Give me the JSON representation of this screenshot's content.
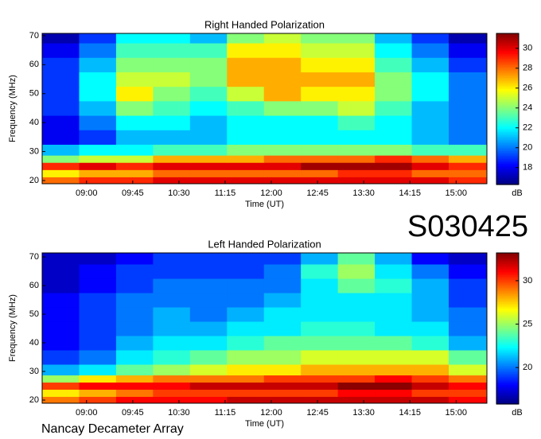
{
  "chart_data": [
    {
      "type": "heatmap",
      "title": "Right Handed Polarization",
      "x_label": "Time (UT)",
      "y_label": "Frequency (MHz)",
      "colorbar_label": "dB",
      "colormap": "jet",
      "x": [
        8.58,
        9.18,
        9.78,
        10.38,
        10.98,
        11.58,
        12.18,
        12.78,
        13.38,
        13.98,
        14.58,
        15.18
      ],
      "y": [
        20,
        22.5,
        25,
        27.5,
        30,
        35,
        40,
        45,
        50,
        55,
        60,
        65,
        70
      ],
      "values": [
        [
          28,
          29,
          29,
          30,
          30,
          30,
          30,
          30,
          30,
          30,
          30,
          29
        ],
        [
          26,
          27,
          27,
          28,
          28,
          28,
          28,
          28,
          29,
          29,
          28,
          28
        ],
        [
          29,
          30,
          29,
          30,
          30,
          30,
          30,
          31,
          31,
          31,
          30,
          29
        ],
        [
          24,
          25,
          25,
          27,
          27,
          27,
          28,
          28,
          28,
          29,
          28,
          27
        ],
        [
          21,
          22,
          22,
          23,
          23,
          24,
          24,
          24,
          24,
          24,
          23,
          23
        ],
        [
          18,
          19,
          21,
          21,
          21,
          22,
          22,
          22,
          22,
          22,
          21,
          20
        ],
        [
          18,
          20,
          22,
          22,
          21,
          22,
          22,
          22,
          23,
          22,
          21,
          20
        ],
        [
          19,
          21,
          24,
          23,
          22,
          23,
          24,
          24,
          25,
          23,
          21,
          20
        ],
        [
          19,
          22,
          26,
          24,
          23,
          25,
          27,
          26,
          26,
          24,
          22,
          20
        ],
        [
          19,
          22,
          25,
          25,
          24,
          27,
          27,
          27,
          27,
          24,
          22,
          20
        ],
        [
          19,
          21,
          24,
          24,
          24,
          27,
          27,
          26,
          26,
          23,
          21,
          19
        ],
        [
          18,
          20,
          23,
          23,
          23,
          26,
          26,
          25,
          25,
          22,
          20,
          18
        ],
        [
          17,
          19,
          22,
          22,
          21,
          24,
          25,
          24,
          24,
          21,
          19,
          17
        ]
      ],
      "xlim": [
        8.28,
        15.5
      ],
      "xticks": [
        {
          "value": 9,
          "label": "09:00"
        },
        {
          "value": 9.75,
          "label": "09:45"
        },
        {
          "value": 10.5,
          "label": "10:30"
        },
        {
          "value": 11.25,
          "label": "11:15"
        },
        {
          "value": 12,
          "label": "12:00"
        },
        {
          "value": 12.75,
          "label": "12:45"
        },
        {
          "value": 13.5,
          "label": "13:30"
        },
        {
          "value": 14.25,
          "label": "14:15"
        },
        {
          "value": 15,
          "label": "15:00"
        }
      ],
      "ylim": [
        18.9,
        70.8
      ],
      "yticks": [
        20,
        30,
        40,
        50,
        60,
        70
      ],
      "clim": [
        16.3,
        31.5
      ],
      "cticks": [
        18,
        20,
        22,
        24,
        26,
        28,
        30
      ]
    },
    {
      "type": "heatmap",
      "title": "Left Handed Polarization",
      "x_label": "Time (UT)",
      "y_label": "Frequency (MHz)",
      "colorbar_label": "dB",
      "colormap": "jet",
      "x": [
        8.58,
        9.18,
        9.78,
        10.38,
        10.98,
        11.58,
        12.18,
        12.78,
        13.38,
        13.98,
        14.58,
        15.18
      ],
      "y": [
        20,
        22.5,
        25,
        27.5,
        30,
        35,
        40,
        45,
        50,
        55,
        60,
        65,
        70
      ],
      "values": [
        [
          29,
          30,
          31,
          31,
          31,
          32,
          32,
          32,
          32,
          32,
          32,
          31
        ],
        [
          27,
          28,
          29,
          30,
          30,
          30,
          30,
          30,
          31,
          31,
          30,
          30
        ],
        [
          30,
          31,
          31,
          31,
          32,
          32,
          32,
          32,
          33,
          33,
          32,
          31
        ],
        [
          25,
          27,
          28,
          29,
          29,
          29,
          30,
          30,
          30,
          31,
          30,
          29
        ],
        [
          21,
          22,
          24,
          25,
          26,
          27,
          27,
          28,
          28,
          28,
          28,
          26
        ],
        [
          19,
          20,
          22,
          23,
          24,
          25,
          25,
          26,
          26,
          26,
          26,
          24
        ],
        [
          18,
          19,
          21,
          22,
          22,
          23,
          24,
          24,
          24,
          24,
          23,
          21
        ],
        [
          18,
          19,
          20,
          21,
          21,
          22,
          22,
          23,
          23,
          22,
          22,
          20
        ],
        [
          18,
          19,
          20,
          21,
          20,
          21,
          22,
          22,
          22,
          22,
          21,
          20
        ],
        [
          18,
          19,
          20,
          20,
          20,
          20,
          21,
          22,
          22,
          22,
          21,
          19
        ],
        [
          17,
          18,
          19,
          20,
          20,
          20,
          20,
          22,
          24,
          23,
          21,
          19
        ],
        [
          17,
          18,
          19,
          19,
          19,
          19,
          20,
          23,
          25,
          22,
          20,
          18
        ],
        [
          17,
          17,
          18,
          19,
          19,
          19,
          19,
          21,
          24,
          21,
          18,
          17
        ]
      ],
      "xlim": [
        8.28,
        15.5
      ],
      "xticks": [
        {
          "value": 9,
          "label": "09:00"
        },
        {
          "value": 9.75,
          "label": "09:45"
        },
        {
          "value": 10.5,
          "label": "10:30"
        },
        {
          "value": 11.25,
          "label": "11:15"
        },
        {
          "value": 12,
          "label": "12:00"
        },
        {
          "value": 12.75,
          "label": "12:45"
        },
        {
          "value": 13.5,
          "label": "13:30"
        },
        {
          "value": 14.25,
          "label": "14:15"
        },
        {
          "value": 15,
          "label": "15:00"
        }
      ],
      "ylim": [
        18.9,
        71.4
      ],
      "yticks": [
        20,
        30,
        40,
        50,
        60,
        70
      ],
      "clim": [
        15.8,
        33.2
      ],
      "cticks": [
        20,
        25,
        30
      ]
    }
  ],
  "label": "S030425",
  "footer": "Nancay Decameter Array"
}
